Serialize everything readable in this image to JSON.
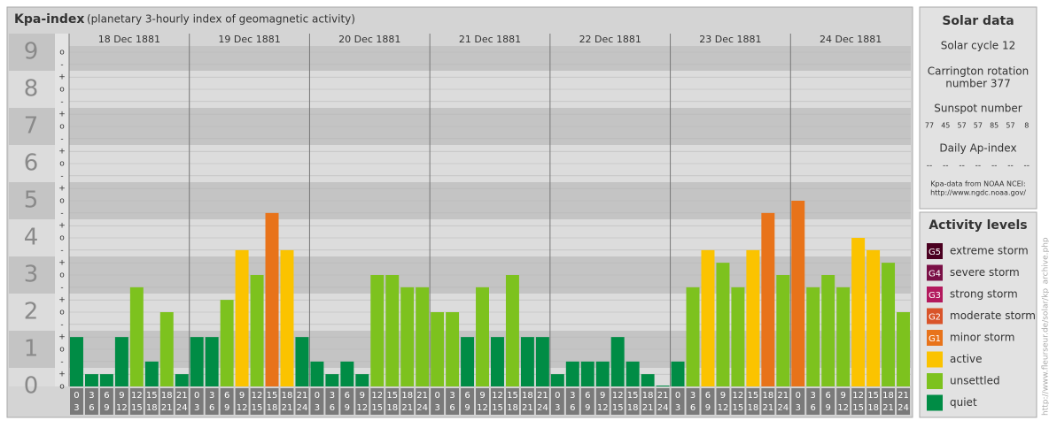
{
  "chart_data": {
    "type": "bar",
    "title": "Kpa-index",
    "subtitle": "(planetary 3-hourly index of geomagnetic activity)",
    "ylim": [
      0,
      9
    ],
    "yticks": [
      0,
      1,
      2,
      3,
      4,
      5,
      6,
      7,
      8,
      9
    ],
    "minor_ticks": [
      {
        "value": 0,
        "label": "o"
      },
      {
        "value": 0.33,
        "label": "+"
      },
      {
        "value": 0.67,
        "label": "-"
      },
      {
        "value": 1,
        "label": "o"
      },
      {
        "value": 1.33,
        "label": "+"
      },
      {
        "value": 1.67,
        "label": "-"
      },
      {
        "value": 2,
        "label": "o"
      },
      {
        "value": 2.33,
        "label": "+"
      },
      {
        "value": 2.67,
        "label": "-"
      },
      {
        "value": 3,
        "label": "o"
      },
      {
        "value": 3.33,
        "label": "+"
      },
      {
        "value": 3.67,
        "label": "-"
      },
      {
        "value": 4,
        "label": "o"
      },
      {
        "value": 4.33,
        "label": "+"
      },
      {
        "value": 4.67,
        "label": "-"
      },
      {
        "value": 5,
        "label": "o"
      },
      {
        "value": 5.33,
        "label": "+"
      },
      {
        "value": 5.67,
        "label": "-"
      },
      {
        "value": 6,
        "label": "o"
      },
      {
        "value": 6.33,
        "label": "+"
      },
      {
        "value": 6.67,
        "label": "-"
      },
      {
        "value": 7,
        "label": "o"
      },
      {
        "value": 7.33,
        "label": "+"
      },
      {
        "value": 7.67,
        "label": "-"
      },
      {
        "value": 8,
        "label": "o"
      },
      {
        "value": 8.33,
        "label": "+"
      },
      {
        "value": 8.67,
        "label": "-"
      },
      {
        "value": 9,
        "label": "o"
      }
    ],
    "hours": [
      {
        "from": "0",
        "to": "3"
      },
      {
        "from": "3",
        "to": "6"
      },
      {
        "from": "6",
        "to": "9"
      },
      {
        "from": "9",
        "to": "12"
      },
      {
        "from": "12",
        "to": "15"
      },
      {
        "from": "15",
        "to": "18"
      },
      {
        "from": "18",
        "to": "21"
      },
      {
        "from": "21",
        "to": "24"
      }
    ],
    "days": [
      {
        "date": "18 Dec 1881",
        "values": [
          1.33,
          0.33,
          0.33,
          1.33,
          2.67,
          0.67,
          2.0,
          0.33
        ],
        "colors": [
          "#008c45",
          "#008c45",
          "#008c45",
          "#008c45",
          "#7dc21e",
          "#008c45",
          "#7dc21e",
          "#008c45"
        ]
      },
      {
        "date": "19 Dec 1881",
        "values": [
          1.33,
          1.33,
          2.33,
          3.67,
          3.0,
          4.67,
          3.67,
          1.33
        ],
        "colors": [
          "#008c45",
          "#008c45",
          "#7dc21e",
          "#fbc300",
          "#7dc21e",
          "#e8731a",
          "#fbc300",
          "#008c45"
        ]
      },
      {
        "date": "20 Dec 1881",
        "values": [
          0.67,
          0.33,
          0.67,
          0.33,
          3.0,
          3.0,
          2.67,
          2.67
        ],
        "colors": [
          "#008c45",
          "#008c45",
          "#008c45",
          "#008c45",
          "#7dc21e",
          "#7dc21e",
          "#7dc21e",
          "#7dc21e"
        ]
      },
      {
        "date": "21 Dec 1881",
        "values": [
          2.0,
          2.0,
          1.33,
          2.67,
          1.33,
          3.0,
          1.33,
          1.33
        ],
        "colors": [
          "#7dc21e",
          "#7dc21e",
          "#008c45",
          "#7dc21e",
          "#008c45",
          "#7dc21e",
          "#008c45",
          "#008c45"
        ]
      },
      {
        "date": "22 Dec 1881",
        "values": [
          0.33,
          0.67,
          0.67,
          0.67,
          1.33,
          0.67,
          0.33,
          0
        ],
        "colors": [
          "#008c45",
          "#008c45",
          "#008c45",
          "#008c45",
          "#008c45",
          "#008c45",
          "#008c45",
          "#008c45"
        ]
      },
      {
        "date": "23 Dec 1881",
        "values": [
          0.67,
          2.67,
          3.67,
          3.33,
          2.67,
          3.67,
          4.67,
          3.0
        ],
        "colors": [
          "#008c45",
          "#7dc21e",
          "#fbc300",
          "#7dc21e",
          "#7dc21e",
          "#fbc300",
          "#e8731a",
          "#7dc21e"
        ]
      },
      {
        "date": "24 Dec 1881",
        "values": [
          5.0,
          2.67,
          3.0,
          2.67,
          4.0,
          3.67,
          3.33,
          2.0
        ],
        "colors": [
          "#e8731a",
          "#7dc21e",
          "#7dc21e",
          "#7dc21e",
          "#fbc300",
          "#fbc300",
          "#7dc21e",
          "#7dc21e"
        ]
      }
    ]
  },
  "solar_data": {
    "title": "Solar data",
    "cycle": "Solar cycle 12",
    "carrington_1": "Carrington rotation",
    "carrington_2": "number 377",
    "sunspot_title": "Sunspot number",
    "sunspot_numbers": [
      77,
      45,
      57,
      57,
      85,
      57,
      8
    ],
    "ap_title": "Daily Ap-index",
    "ap_values": [
      "--",
      "--",
      "--",
      "--",
      "--",
      "--",
      "--"
    ],
    "source": "Kpa-data from NOAA NCEI:",
    "source_url": "http://www.ngdc.noaa.gov/"
  },
  "activity_levels": {
    "title": "Activity levels",
    "items": [
      {
        "code": "G5",
        "label": "extreme storm",
        "color": "#4a0020"
      },
      {
        "code": "G4",
        "label": "severe storm",
        "color": "#7a1046"
      },
      {
        "code": "G3",
        "label": "strong storm",
        "color": "#b3195d"
      },
      {
        "code": "G2",
        "label": "moderate storm",
        "color": "#d9542a"
      },
      {
        "code": "G1",
        "label": "minor storm",
        "color": "#e8731a"
      },
      {
        "code": "",
        "label": "active",
        "color": "#fbc300"
      },
      {
        "code": "",
        "label": "unsettled",
        "color": "#7dc21e"
      },
      {
        "code": "",
        "label": "quiet",
        "color": "#008c45"
      }
    ]
  },
  "side_url": "http://www.fleurseur.de/solar/kp_archive.php"
}
